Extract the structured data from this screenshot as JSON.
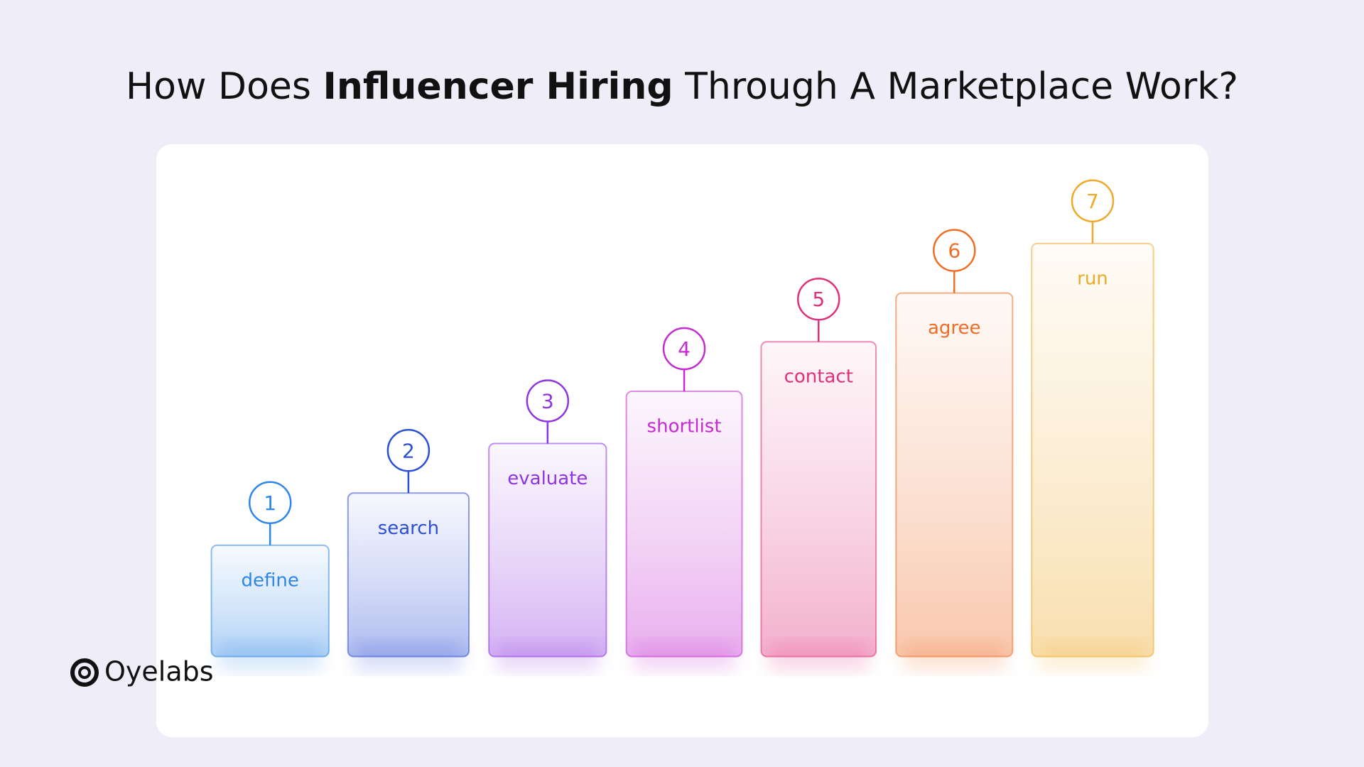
{
  "header": {
    "title_start": "How Does",
    "title_bold": "Influencer Hiring",
    "title_end": "Through A Marketplace Work?"
  },
  "steps": [
    {
      "number": "1",
      "label": "define",
      "color": "#2f86e6"
    },
    {
      "number": "2",
      "label": "search",
      "color": "#2d4fd6"
    },
    {
      "number": "3",
      "label": "evaluate",
      "color": "#8e35e0"
    },
    {
      "number": "4",
      "label": "shortlist",
      "color": "#c42bd1"
    },
    {
      "number": "5",
      "label": "contact",
      "color": "#e1307a"
    },
    {
      "number": "6",
      "label": "agree",
      "color": "#ef6d27"
    },
    {
      "number": "7",
      "label": "run",
      "color": "#eeaa2a"
    }
  ],
  "logo": {
    "text": "Oyelabs"
  }
}
